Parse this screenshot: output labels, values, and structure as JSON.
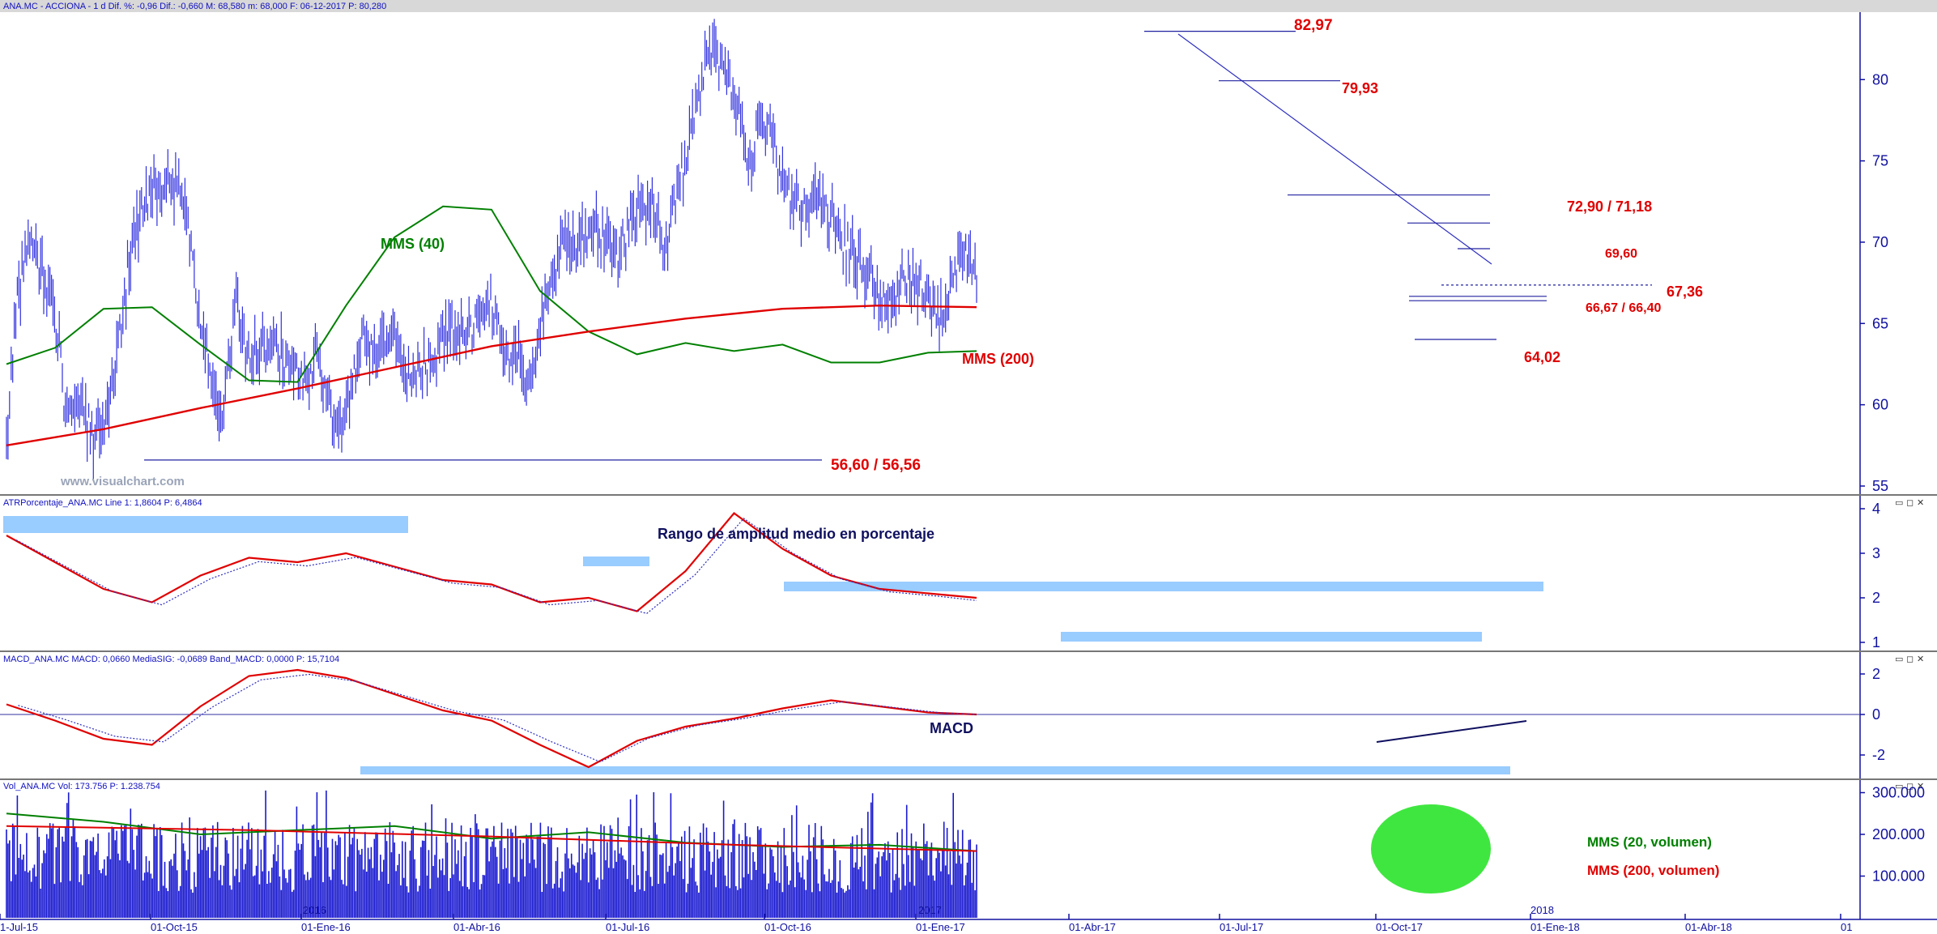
{
  "chart_data": {
    "type": "line",
    "x_axis": {
      "ticks": [
        "1-Jul-15",
        "01-Oct-15",
        "01-Ene-16",
        "01-Abr-16",
        "01-Jul-16",
        "01-Oct-16",
        "01-Ene-17",
        "01-Abr-17",
        "01-Jul-17",
        "01-Oct-17",
        "01-Ene-18",
        "01-Abr-18",
        "01"
      ],
      "year_marks": [
        "2016",
        "2017",
        "2018"
      ]
    },
    "panels": [
      {
        "name": "price",
        "header": "ANA.MC - ACCIONA -  1 d  Dif. %: -0,96  Dif.: -0,660  M: 68,580  m: 68,000  F: 06-12-2017  P: 80,280",
        "watermark": "www.visualchart.com",
        "ylim": [
          55,
          83.6
        ],
        "yticks": [
          "55",
          "60",
          "65",
          "70",
          "75",
          "80"
        ],
        "series": [
          {
            "name": "MMS (40)",
            "color": "#008000",
            "x": [
              0,
              0.05,
              0.1,
              0.15,
              0.2,
              0.25,
              0.3,
              0.35,
              0.4,
              0.45,
              0.5,
              0.55,
              0.6,
              0.65,
              0.7,
              0.75,
              0.8,
              0.85,
              0.9,
              0.95,
              1.0
            ],
            "values": [
              62.5,
              63.5,
              65.9,
              66,
              63.7,
              61.5,
              61.4,
              66.1,
              70.3,
              72.2,
              72,
              67,
              64.5,
              63.1,
              63.8,
              63.3,
              63.7,
              62.6,
              62.6,
              63.2,
              63.3
            ]
          },
          {
            "name": "MMS (200)",
            "color": "#e00000",
            "x": [
              0,
              0.1,
              0.2,
              0.3,
              0.4,
              0.5,
              0.6,
              0.7,
              0.8,
              0.9,
              1.0
            ],
            "values": [
              57.5,
              58.5,
              59.8,
              61,
              62.3,
              63.6,
              64.5,
              65.3,
              65.9,
              66.1,
              66
            ]
          }
        ],
        "levels": [
          {
            "label": "82,97",
            "value": 82.97
          },
          {
            "label": "79,93",
            "value": 79.93
          },
          {
            "label": "72,90 / 71,18",
            "values": [
              72.9,
              71.18
            ]
          },
          {
            "label": "69,60",
            "value": 69.6
          },
          {
            "label": "67,36",
            "value": 67.36
          },
          {
            "label": "66,67 / 66,40",
            "values": [
              66.67,
              66.4
            ]
          },
          {
            "label": "64,02",
            "value": 64.02
          },
          {
            "label": "56,60 / 56,56",
            "values": [
              56.6,
              56.56
            ]
          }
        ],
        "annotations": [
          "MMS (40)",
          "MMS (200)"
        ]
      },
      {
        "name": "ATR %",
        "header": "ATRPorcentaje_ANA.MC  Line 1: 1,8604  P: 6,4864",
        "ylim": [
          0.8,
          4
        ],
        "yticks": [
          "1",
          "2",
          "3",
          "4"
        ],
        "series": [
          {
            "name": "Line 1",
            "color": "#e00000",
            "x": [
              0,
              0.05,
              0.1,
              0.15,
              0.2,
              0.25,
              0.3,
              0.35,
              0.4,
              0.45,
              0.5,
              0.55,
              0.6,
              0.65,
              0.7,
              0.75,
              0.8,
              0.85,
              0.9,
              0.95,
              1.0
            ],
            "values": [
              3.4,
              2.8,
              2.2,
              1.9,
              2.5,
              2.9,
              2.8,
              3.0,
              2.7,
              2.4,
              2.3,
              1.9,
              2.0,
              1.7,
              2.6,
              3.9,
              3.1,
              2.5,
              2.2,
              2.1,
              2.0
            ]
          }
        ],
        "annotation": "Rango de amplitud medio en porcentaje"
      },
      {
        "name": "MACD",
        "header": "MACD_ANA.MC  MACD: 0,0660  MediaSIG: -0,0689  Band_MACD: 0,0000  P: 15,7104",
        "ylim": [
          -3,
          2.6
        ],
        "yticks": [
          "2",
          "0",
          "-2"
        ],
        "series": [
          {
            "name": "MACD",
            "color": "#e00000",
            "x": [
              0,
              0.05,
              0.1,
              0.15,
              0.2,
              0.25,
              0.3,
              0.35,
              0.4,
              0.45,
              0.5,
              0.55,
              0.6,
              0.65,
              0.7,
              0.75,
              0.8,
              0.85,
              0.9,
              0.95,
              1.0
            ],
            "values": [
              0.5,
              -0.3,
              -1.2,
              -1.5,
              0.4,
              1.9,
              2.2,
              1.8,
              1.0,
              0.2,
              -0.3,
              -1.5,
              -2.6,
              -1.3,
              -0.6,
              -0.2,
              0.3,
              0.7,
              0.4,
              0.1,
              0.0
            ]
          }
        ],
        "annotation": "MACD"
      },
      {
        "name": "Volume",
        "header": "Vol_ANA.MC  Vol: 173.756  P: 1.238.754",
        "ylim": [
          0,
          320000
        ],
        "yticks": [
          "300.000",
          "200.000",
          "100.000"
        ],
        "series": [
          {
            "name": "MMS (20, volumen)",
            "color": "#008000",
            "x": [
              0,
              0.1,
              0.2,
              0.3,
              0.4,
              0.5,
              0.6,
              0.7,
              0.8,
              0.9,
              1.0
            ],
            "values": [
              250000,
              230000,
              200000,
              210000,
              220000,
              190000,
              205000,
              180000,
              170000,
              175000,
              160000
            ]
          },
          {
            "name": "MMS (200, volumen)",
            "color": "#e00000",
            "x": [
              0,
              0.25,
              0.5,
              0.75,
              1.0
            ],
            "values": [
              220000,
              210000,
              195000,
              175000,
              160000
            ]
          }
        ],
        "legend": [
          "MMS (20, volumen)",
          "MMS (200, volumen)"
        ]
      }
    ]
  }
}
